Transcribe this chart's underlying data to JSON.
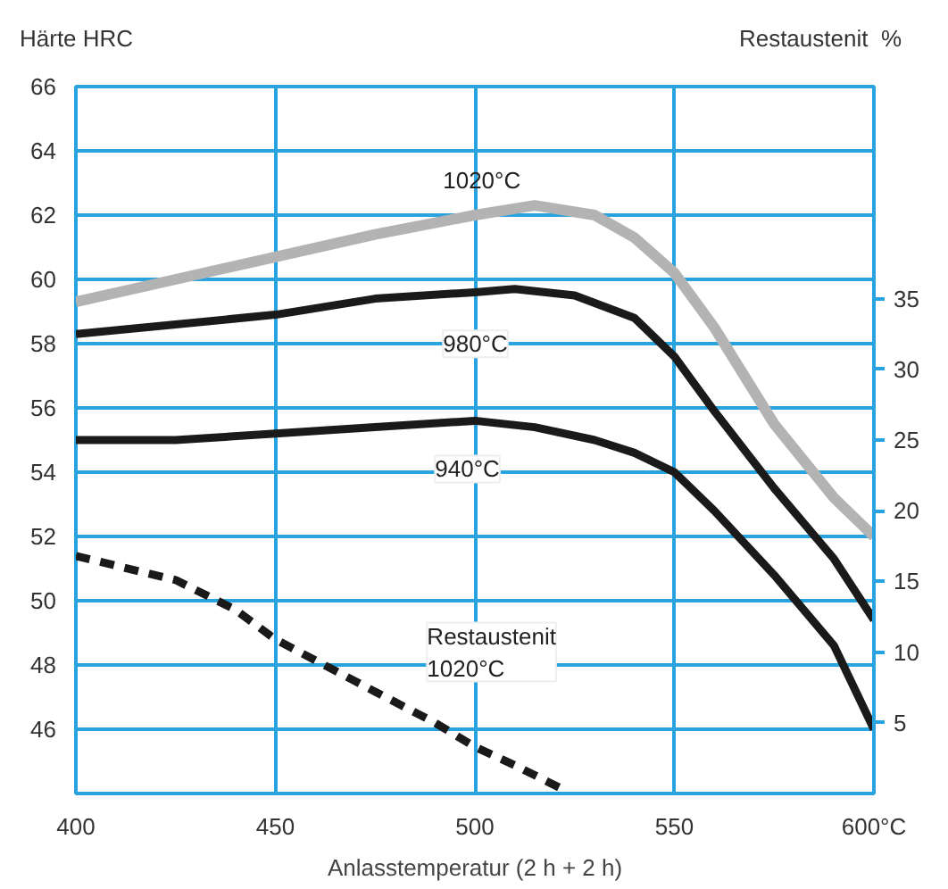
{
  "chart_data": {
    "type": "line",
    "xlabel": "Anlasstemperatur (2 h + 2 h)",
    "ylabel": "Härte HRC",
    "y2label": "Restaustenit  %",
    "xlim": [
      400,
      600
    ],
    "xticks": [
      400,
      450,
      500,
      550,
      {
        "value": 600,
        "label": "600°C"
      }
    ],
    "ylim": [
      44,
      66
    ],
    "yticks": [
      46,
      48,
      50,
      52,
      54,
      56,
      58,
      60,
      62,
      64,
      66
    ],
    "y2lim": [
      0,
      50
    ],
    "y2ticks": [
      5,
      10,
      15,
      20,
      25,
      30,
      35
    ],
    "grid": true,
    "marker": "none",
    "series": [
      {
        "color": "#b3b3b3",
        "line_style": "solid",
        "x": [
          400,
          425,
          450,
          475,
          500,
          515,
          530,
          540,
          550,
          560,
          575,
          590,
          600
        ],
        "values": [
          59.3,
          60.0,
          60.7,
          61.4,
          62.0,
          62.3,
          62.0,
          61.3,
          60.2,
          58.5,
          55.5,
          53.2,
          52.0
        ]
      },
      {
        "color": "#1a1a1a",
        "line_style": "solid",
        "x": [
          400,
          425,
          450,
          475,
          500,
          510,
          525,
          540,
          550,
          560,
          575,
          590,
          600
        ],
        "values": [
          58.3,
          58.6,
          58.9,
          59.4,
          59.6,
          59.7,
          59.5,
          58.8,
          57.6,
          55.9,
          53.5,
          51.3,
          49.4
        ]
      },
      {
        "color": "#1a1a1a",
        "line_style": "solid",
        "x": [
          400,
          425,
          450,
          475,
          500,
          515,
          530,
          540,
          550,
          560,
          575,
          590,
          600
        ],
        "values": [
          55.0,
          55.0,
          55.2,
          55.4,
          55.6,
          55.4,
          55.0,
          54.6,
          54.0,
          52.8,
          50.8,
          48.6,
          46.0
        ]
      },
      {
        "color": "#1a1a1a",
        "line_style": "dashed",
        "axis": "y2",
        "x": [
          400,
          425,
          440,
          450,
          475,
          490,
          500,
          510,
          522
        ],
        "values": [
          16.8,
          15.1,
          13.0,
          10.9,
          7.2,
          5.0,
          3.3,
          2.0,
          0.3
        ]
      }
    ],
    "annotations": [
      "1020°C",
      "980°C",
      "940°C",
      "Restaustenit\n1020°C"
    ]
  }
}
